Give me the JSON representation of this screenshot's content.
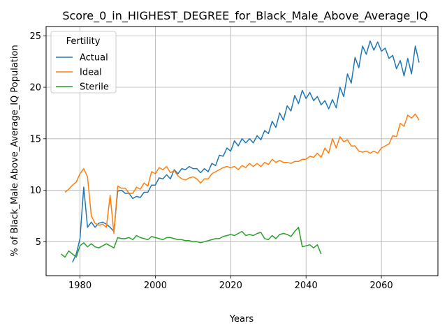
{
  "chart_data": {
    "type": "line",
    "title": "Score_0_in_HIGHEST_DEGREE_for_Black_Male_Above_Average_IQ",
    "xlabel": "Years",
    "ylabel": "% of Black_Male Above_Average_IQ Population",
    "xlim": [
      1971,
      2075
    ],
    "ylim": [
      1.7,
      25.9
    ],
    "xticks": [
      1980,
      2000,
      2020,
      2040,
      2060
    ],
    "yticks": [
      5,
      10,
      15,
      20,
      25
    ],
    "grid": true,
    "legend": {
      "title": "Fertility",
      "placement": "top-left"
    },
    "series": [
      {
        "name": "Actual",
        "color": "#1f77b4",
        "x": [
          1978,
          1979,
          1980,
          1981,
          1982,
          1983,
          1984,
          1985,
          1986,
          1987,
          1988,
          1989,
          1990,
          1991,
          1992,
          1993,
          1994,
          1995,
          1996,
          1997,
          1998,
          1999,
          2000,
          2001,
          2002,
          2003,
          2004,
          2005,
          2006,
          2007,
          2008,
          2009,
          2010,
          2011,
          2012,
          2013,
          2014,
          2015,
          2016,
          2017,
          2018,
          2019,
          2020,
          2021,
          2022,
          2023,
          2024,
          2025,
          2026,
          2027,
          2028,
          2029,
          2030,
          2031,
          2032,
          2033,
          2034,
          2035,
          2036,
          2037,
          2038,
          2039,
          2040,
          2041,
          2042,
          2043,
          2044,
          2045,
          2046,
          2047,
          2048,
          2049,
          2050,
          2051,
          2052,
          2053,
          2054,
          2055,
          2056,
          2057,
          2058,
          2059,
          2060,
          2061,
          2062,
          2063,
          2064,
          2065,
          2066,
          2067,
          2068,
          2069,
          2070
        ],
        "y": [
          3.0,
          3.8,
          5.3,
          10.3,
          6.4,
          6.9,
          6.4,
          6.8,
          6.9,
          6.7,
          6.4,
          6.0,
          9.9,
          10.0,
          9.7,
          9.7,
          9.2,
          9.4,
          9.3,
          9.8,
          9.8,
          10.5,
          10.5,
          11.2,
          11.1,
          11.5,
          11.1,
          12.0,
          11.6,
          12.1,
          12.0,
          12.3,
          12.1,
          12.1,
          11.7,
          12.1,
          11.8,
          12.6,
          12.4,
          13.4,
          13.3,
          14.1,
          13.8,
          14.8,
          14.3,
          15.0,
          14.6,
          15.0,
          14.6,
          15.3,
          14.9,
          15.8,
          15.5,
          16.7,
          16.1,
          17.5,
          16.8,
          18.2,
          17.7,
          19.2,
          18.4,
          19.7,
          18.9,
          19.5,
          18.7,
          19.1,
          18.3,
          18.7,
          17.9,
          18.8,
          18.0,
          20.0,
          19.1,
          21.3,
          20.4,
          22.9,
          21.9,
          24.0,
          23.2,
          24.5,
          23.6,
          24.4,
          23.5,
          23.8,
          22.8,
          23.1,
          21.8,
          22.6,
          21.1,
          22.8,
          21.3,
          24.0,
          22.4
        ]
      },
      {
        "name": "Ideal",
        "color": "#ff7f0e",
        "x": [
          1976,
          1977,
          1978,
          1979,
          1980,
          1981,
          1982,
          1983,
          1984,
          1985,
          1986,
          1987,
          1988,
          1989,
          1990,
          1991,
          1992,
          1993,
          1994,
          1995,
          1996,
          1997,
          1998,
          1999,
          2000,
          2001,
          2002,
          2003,
          2004,
          2005,
          2006,
          2007,
          2008,
          2009,
          2010,
          2011,
          2012,
          2013,
          2014,
          2015,
          2016,
          2017,
          2018,
          2019,
          2020,
          2021,
          2022,
          2023,
          2024,
          2025,
          2026,
          2027,
          2028,
          2029,
          2030,
          2031,
          2032,
          2033,
          2034,
          2035,
          2036,
          2037,
          2038,
          2039,
          2040,
          2041,
          2042,
          2043,
          2044,
          2045,
          2046,
          2047,
          2048,
          2049,
          2050,
          2051,
          2052,
          2053,
          2054,
          2055,
          2056,
          2057,
          2058,
          2059,
          2060,
          2061,
          2062,
          2063,
          2064,
          2065,
          2066,
          2067,
          2068,
          2069,
          2070
        ],
        "y": [
          9.8,
          10.1,
          10.5,
          10.8,
          11.6,
          12.1,
          11.3,
          7.5,
          6.8,
          6.6,
          6.7,
          6.4,
          9.5,
          5.8,
          10.4,
          10.2,
          10.2,
          9.7,
          9.7,
          10.3,
          10.1,
          10.7,
          10.4,
          11.8,
          11.6,
          12.2,
          12.0,
          12.3,
          11.7,
          11.9,
          11.4,
          11.1,
          11.0,
          11.2,
          11.3,
          11.1,
          10.7,
          11.1,
          11.1,
          11.6,
          11.8,
          12.0,
          12.2,
          12.3,
          12.2,
          12.3,
          12.0,
          12.4,
          12.2,
          12.6,
          12.3,
          12.6,
          12.3,
          12.7,
          12.5,
          13.0,
          12.7,
          12.9,
          12.7,
          12.7,
          12.6,
          12.8,
          12.8,
          13.0,
          13.0,
          13.3,
          13.2,
          13.6,
          13.2,
          14.1,
          13.6,
          15.0,
          14.1,
          15.2,
          14.7,
          14.9,
          14.3,
          14.3,
          13.8,
          13.7,
          13.8,
          13.6,
          13.8,
          13.6,
          14.1,
          14.3,
          14.5,
          15.3,
          15.2,
          16.5,
          16.2,
          17.3,
          17.0,
          17.4,
          16.8
        ]
      },
      {
        "name": "Sterile",
        "color": "#2ca02c",
        "x": [
          1975,
          1976,
          1977,
          1978,
          1979,
          1980,
          1981,
          1982,
          1983,
          1984,
          1985,
          1986,
          1987,
          1988,
          1989,
          1990,
          1991,
          1992,
          1993,
          1994,
          1995,
          1996,
          1997,
          1998,
          1999,
          2000,
          2001,
          2002,
          2003,
          2004,
          2005,
          2006,
          2007,
          2008,
          2009,
          2010,
          2011,
          2012,
          2013,
          2014,
          2015,
          2016,
          2017,
          2018,
          2019,
          2020,
          2021,
          2022,
          2023,
          2024,
          2025,
          2026,
          2027,
          2028,
          2029,
          2030,
          2031,
          2032,
          2033,
          2034,
          2035,
          2036,
          2037,
          2038,
          2039,
          2040,
          2041,
          2042,
          2043,
          2044
        ],
        "y": [
          3.8,
          3.5,
          4.1,
          3.8,
          3.5,
          4.6,
          4.9,
          4.5,
          4.8,
          4.5,
          4.4,
          4.6,
          4.8,
          4.6,
          4.4,
          5.4,
          5.3,
          5.3,
          5.4,
          5.2,
          5.6,
          5.4,
          5.3,
          5.2,
          5.5,
          5.4,
          5.3,
          5.2,
          5.4,
          5.4,
          5.3,
          5.2,
          5.2,
          5.1,
          5.1,
          5.0,
          5.0,
          4.9,
          5.0,
          5.1,
          5.2,
          5.3,
          5.3,
          5.5,
          5.6,
          5.7,
          5.6,
          5.8,
          6.0,
          5.6,
          5.7,
          5.6,
          5.8,
          5.9,
          5.3,
          5.2,
          5.6,
          5.3,
          5.7,
          5.8,
          5.7,
          5.5,
          6.0,
          6.4,
          4.5,
          4.6,
          4.7,
          4.4,
          4.7,
          3.8
        ]
      }
    ]
  }
}
